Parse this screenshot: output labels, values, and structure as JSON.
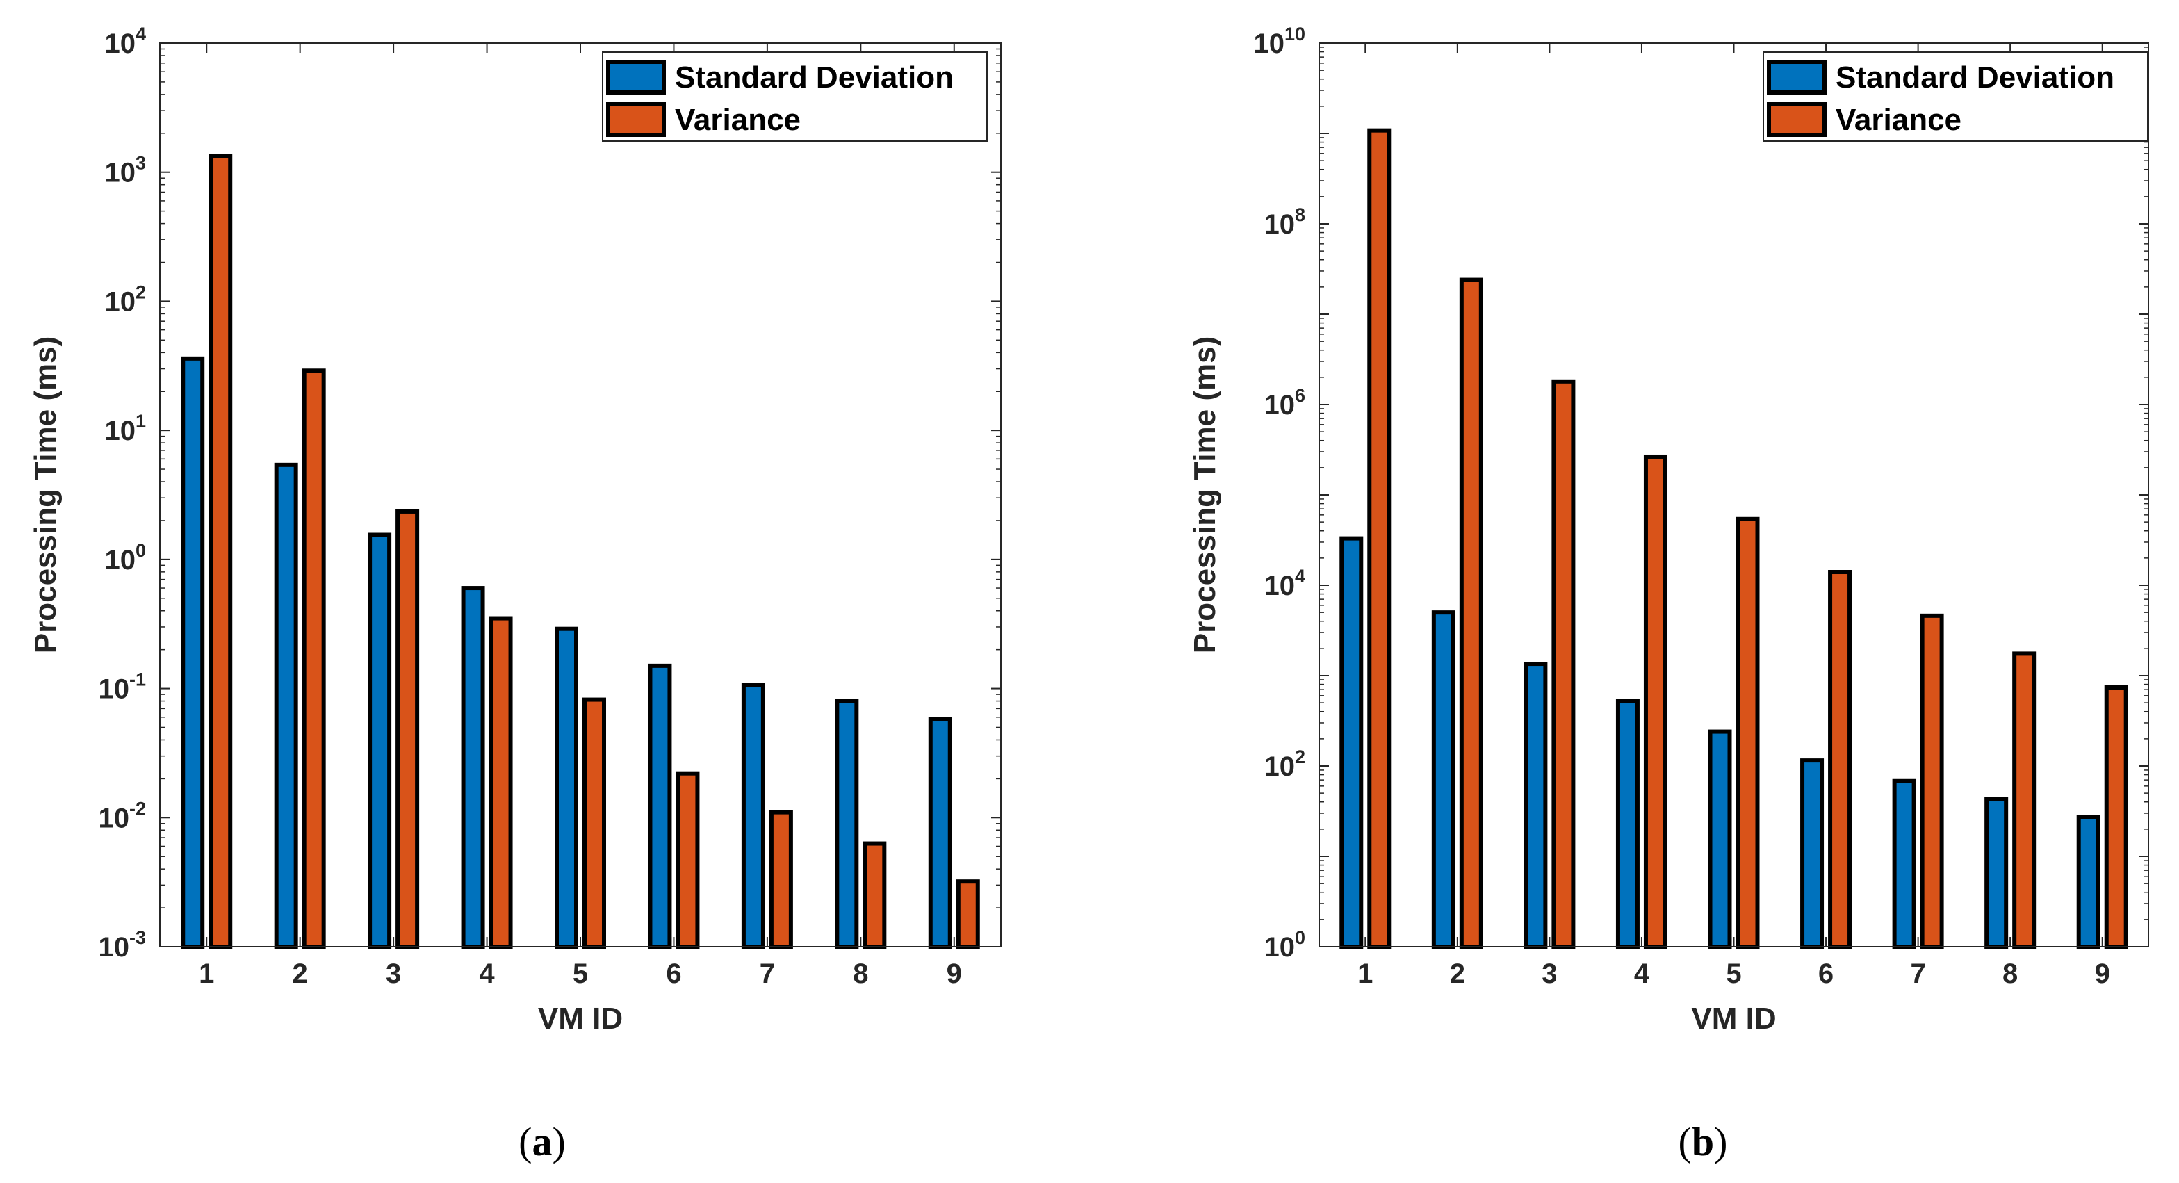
{
  "chart_data": [
    {
      "type": "bar",
      "caption_letter": "a",
      "xlabel": "VM ID",
      "ylabel": "Processing Time (ms)",
      "categories": [
        "1",
        "2",
        "3",
        "4",
        "5",
        "6",
        "7",
        "8",
        "9"
      ],
      "y_scale": "log",
      "ylim": [
        0.001,
        10000
      ],
      "y_ticks": [
        {
          "base": "10",
          "exp": "-3"
        },
        {
          "base": "10",
          "exp": "-2"
        },
        {
          "base": "10",
          "exp": "-1"
        },
        {
          "base": "10",
          "exp": "0"
        },
        {
          "base": "10",
          "exp": "1"
        },
        {
          "base": "10",
          "exp": "2"
        },
        {
          "base": "10",
          "exp": "3"
        },
        {
          "base": "10",
          "exp": "4"
        }
      ],
      "legend_position": "top-right",
      "grid": false,
      "series": [
        {
          "name": "Standard Deviation",
          "color": "#0072BD",
          "values": [
            36,
            5.4,
            1.55,
            0.6,
            0.29,
            0.15,
            0.107,
            0.08,
            0.058
          ]
        },
        {
          "name": "Variance",
          "color": "#D95319",
          "values": [
            1330,
            29,
            2.35,
            0.35,
            0.082,
            0.022,
            0.011,
            0.0063,
            0.0032
          ]
        }
      ]
    },
    {
      "type": "bar",
      "caption_letter": "b",
      "xlabel": "VM ID",
      "ylabel": "Processing Time (ms)",
      "categories": [
        "1",
        "2",
        "3",
        "4",
        "5",
        "6",
        "7",
        "8",
        "9"
      ],
      "y_scale": "log",
      "ylim": [
        1,
        10000000000
      ],
      "y_ticks": [
        {
          "base": "10",
          "exp": "0"
        },
        {
          "base": "10",
          "exp": "2"
        },
        {
          "base": "10",
          "exp": "4"
        },
        {
          "base": "10",
          "exp": "6"
        },
        {
          "base": "10",
          "exp": "8"
        },
        {
          "base": "10",
          "exp": "10"
        }
      ],
      "legend_position": "top-right",
      "grid": false,
      "series": [
        {
          "name": "Standard Deviation",
          "color": "#0072BD",
          "values": [
            33000,
            5000,
            1350,
            520,
            240,
            115,
            68,
            43,
            27
          ]
        },
        {
          "name": "Variance",
          "color": "#D95319",
          "values": [
            1080000000,
            24000000,
            1800000,
            265000,
            54000,
            14000,
            4600,
            1750,
            740
          ]
        }
      ]
    }
  ]
}
